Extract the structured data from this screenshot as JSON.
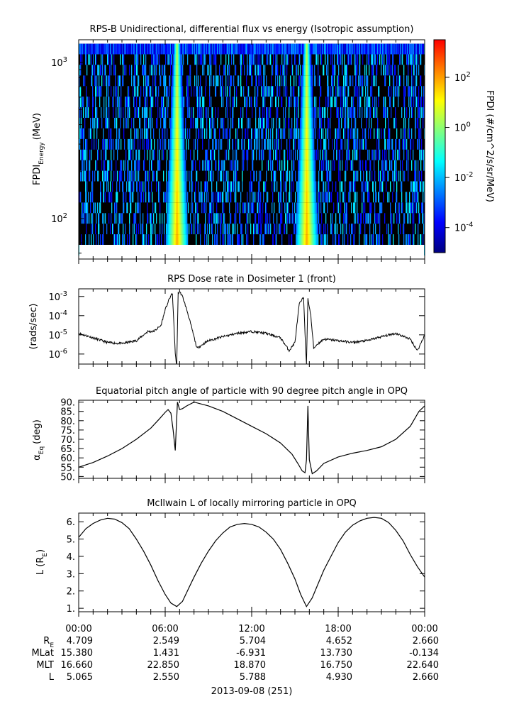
{
  "panels": {
    "spectrogram": {
      "title": "RPS-B  Unidirectional, differential flux vs energy (Isotropic assumption)",
      "ylabel_main": "FPDI",
      "ylabel_sub": "Energy",
      "ylabel_unit": "(MeV)",
      "colorbar_label": "FPDI (#/cm^2/s/sr/MeV)"
    },
    "dose": {
      "title": "RPS  Dose rate in Dosimeter 1 (front)",
      "ylabel": "(rads/sec)"
    },
    "pitch": {
      "title": "Equatorial pitch angle of particle with 90 degree pitch angle in OPQ",
      "ylabel_main": "α",
      "ylabel_sub": "Eq",
      "ylabel_unit": "(deg)"
    },
    "lshell": {
      "title": "McIlwain L of locally mirroring particle in OPQ",
      "ylabel_main": "L (R",
      "ylabel_sub": "E",
      "ylabel_end": ")"
    }
  },
  "ephemeris": {
    "row_labels": [
      {
        "main": "R",
        "sub": "E"
      },
      {
        "main": "MLat",
        "sub": ""
      },
      {
        "main": "MLT",
        "sub": ""
      },
      {
        "main": "L",
        "sub": ""
      }
    ],
    "times": [
      "00:00",
      "06:00",
      "12:00",
      "18:00",
      "00:00"
    ],
    "values": [
      [
        "4.709",
        "2.549",
        "5.704",
        "4.652",
        "2.660"
      ],
      [
        "15.380",
        "1.431",
        "-6.931",
        "13.730",
        "-0.134"
      ],
      [
        "16.660",
        "22.850",
        "18.870",
        "16.750",
        "22.640"
      ],
      [
        "5.065",
        "2.550",
        "5.788",
        "4.930",
        "2.660"
      ]
    ],
    "date_label": "2013-09-08 (251)"
  },
  "chart_data": [
    {
      "type": "heatmap",
      "title": "RPS-B  Unidirectional, differential flux vs energy (Isotropic assumption)",
      "ylabel": "FPDI Energy (MeV)",
      "yscale": "log",
      "ylim": [
        55,
        1400
      ],
      "y_tick_labels": [
        {
          "base": "10",
          "exp": "2",
          "value": 100
        },
        {
          "base": "10",
          "exp": "3",
          "value": 1000
        }
      ],
      "colorbar": {
        "scale": "log",
        "range_log10": [
          -5,
          3.5
        ],
        "tick_labels": [
          {
            "base": "10",
            "exp": "2",
            "log": 2
          },
          {
            "base": "10",
            "exp": "0",
            "log": 0
          },
          {
            "base": "10",
            "exp": "-2",
            "log": -2
          },
          {
            "base": "10",
            "exp": "-4",
            "log": -4
          }
        ],
        "colors": [
          "#00007f",
          "#0000ff",
          "#0080ff",
          "#00ffff",
          "#80ff80",
          "#ffff00",
          "#ff8000",
          "#ff0000"
        ]
      },
      "belt_crossings_hours": [
        6.8,
        15.8
      ]
    },
    {
      "type": "line",
      "title": "RPS  Dose rate in Dosimeter 1 (front)",
      "ylabel": "(rads/sec)",
      "yscale": "log",
      "ylim": [
        3e-07,
        0.0025
      ],
      "y_tick_labels": [
        {
          "base": "10",
          "exp": "-3",
          "value": 0.001
        },
        {
          "base": "10",
          "exp": "-4",
          "value": 0.0001
        },
        {
          "base": "10",
          "exp": "-5",
          "value": 1e-05
        },
        {
          "base": "10",
          "exp": "-6",
          "value": 1e-06
        }
      ],
      "xlim": [
        0,
        24
      ],
      "x": [
        0,
        1,
        2,
        3,
        4,
        4.8,
        5.2,
        5.7,
        6.0,
        6.3,
        6.5,
        6.7,
        6.8,
        6.9,
        7.0,
        7.2,
        7.5,
        7.8,
        8.2,
        9,
        10,
        11,
        12,
        13,
        14,
        14.6,
        15.0,
        15.3,
        15.6,
        15.8,
        15.9,
        16.1,
        16.3,
        16.5,
        17,
        18,
        19,
        20,
        21,
        22,
        23,
        23.5,
        24
      ],
      "y": [
        1.2e-05,
        7e-06,
        4e-06,
        3.5e-06,
        5e-06,
        1.5e-05,
        1.5e-05,
        3e-05,
        0.0002,
        0.0008,
        0.0015,
        1e-06,
        2e-07,
        0.0015,
        0.0018,
        0.001,
        0.0002,
        3e-05,
        2e-06,
        5e-06,
        8e-06,
        1.2e-05,
        1.5e-05,
        1.2e-05,
        7e-06,
        1.5e-06,
        4e-06,
        0.0004,
        0.0009,
        2e-07,
        0.0008,
        0.0001,
        2e-06,
        3e-06,
        6e-06,
        5e-06,
        4e-06,
        5e-06,
        8e-06,
        1.2e-05,
        6e-06,
        1.5e-06,
        1e-05
      ]
    },
    {
      "type": "line",
      "title": "Equatorial pitch angle of particle with 90 degree pitch angle in OPQ",
      "ylabel": "αEq (deg)",
      "ylim": [
        49,
        91
      ],
      "y_ticks": [
        50,
        55,
        60,
        65,
        70,
        75,
        80,
        85,
        90
      ],
      "y_tick_labels": [
        "50.",
        "55.",
        "60.",
        "65.",
        "70.",
        "75.",
        "80.",
        "85.",
        "90."
      ],
      "xlim": [
        0,
        24
      ],
      "x": [
        0,
        1,
        2,
        3,
        4,
        5,
        5.6,
        6.0,
        6.2,
        6.4,
        6.55,
        6.7,
        6.85,
        7.0,
        7.2,
        7.5,
        8,
        9,
        10,
        11,
        12,
        13,
        14,
        14.8,
        15.2,
        15.5,
        15.7,
        15.8,
        15.9,
        16.0,
        16.2,
        16.5,
        17,
        18,
        19,
        20,
        21,
        22,
        23,
        23.6,
        24
      ],
      "y": [
        55,
        57.5,
        61,
        65,
        70,
        76,
        81,
        84.5,
        86,
        84,
        75,
        64,
        90,
        86,
        86.5,
        88,
        90,
        88,
        85,
        81,
        77,
        73,
        68,
        62,
        57,
        53,
        52,
        59,
        88,
        59,
        51.5,
        53,
        57,
        60.5,
        62.5,
        64,
        66,
        70,
        77,
        85,
        88
      ]
    },
    {
      "type": "line",
      "title": "McIlwain L of locally mirroring particle in OPQ",
      "ylabel": "L (RE)",
      "ylim": [
        0.8,
        6.5
      ],
      "y_ticks": [
        1,
        2,
        3,
        4,
        5,
        6
      ],
      "y_tick_labels": [
        "1.",
        "2.",
        "3.",
        "4.",
        "5.",
        "6."
      ],
      "xlim": [
        0,
        24
      ],
      "x": [
        0,
        0.5,
        1,
        1.5,
        2,
        2.5,
        3,
        3.5,
        4,
        4.5,
        5,
        5.5,
        6,
        6.4,
        6.8,
        7.2,
        7.6,
        8,
        8.5,
        9,
        9.5,
        10,
        10.5,
        11,
        11.5,
        12,
        12.5,
        13,
        13.5,
        14,
        14.5,
        15,
        15.4,
        15.8,
        16.2,
        16.6,
        17,
        17.5,
        18,
        18.5,
        19,
        19.5,
        20,
        20.5,
        21,
        21.5,
        22,
        22.5,
        23,
        23.5,
        24
      ],
      "y": [
        5.1,
        5.6,
        5.9,
        6.1,
        6.2,
        6.15,
        5.95,
        5.6,
        5.0,
        4.3,
        3.5,
        2.6,
        1.8,
        1.3,
        1.1,
        1.4,
        2.1,
        2.8,
        3.6,
        4.3,
        4.9,
        5.35,
        5.7,
        5.85,
        5.9,
        5.85,
        5.7,
        5.4,
        5.0,
        4.4,
        3.6,
        2.7,
        1.8,
        1.1,
        1.6,
        2.4,
        3.2,
        4.0,
        4.8,
        5.4,
        5.8,
        6.05,
        6.2,
        6.25,
        6.2,
        5.95,
        5.5,
        4.9,
        4.1,
        3.4,
        2.8
      ]
    }
  ]
}
